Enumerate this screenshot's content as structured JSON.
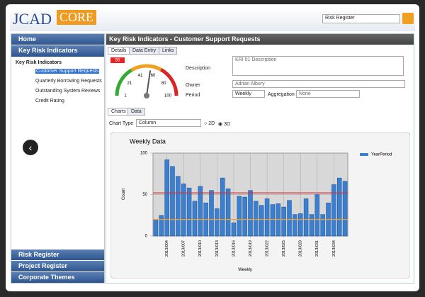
{
  "header": {
    "logo_left": "JCAD",
    "logo_right": "CORE",
    "register_select": "Risk Register"
  },
  "sidebar": {
    "top_sections": [
      "Home",
      "Key Risk Indicators"
    ],
    "tree_root": "Key Risk Indicators",
    "tree_items": [
      "Customer Support Requests",
      "Quarterly Borrowing Requests",
      "Outstanding System Reviews",
      "Credit Rating"
    ],
    "bottom_sections": [
      "Risk Register",
      "Project Register",
      "Corporate Themes"
    ]
  },
  "panel": {
    "title": "Key Risk Indicators - Customer Support Requests",
    "tabs": [
      "Details",
      "Data Entry",
      "Links"
    ],
    "gauge": {
      "value": 55,
      "ticks": [
        1,
        21,
        41,
        60,
        80,
        100
      ]
    },
    "fields": {
      "description_label": "Description",
      "description": "KRI 01 Description",
      "owner_label": "Owner",
      "owner": "Adrian Albury",
      "period_label": "Period",
      "period": "Weekly",
      "aggregation_label": "Aggregation",
      "aggregation": "None"
    },
    "chart_tabs": [
      "Charts",
      "Data"
    ],
    "chart_type_label": "Chart Type",
    "chart_type": "Column",
    "modes": [
      "2D",
      "3D"
    ]
  },
  "chart_data": {
    "type": "bar",
    "title": "Weekly Data",
    "x_label": "Weekly",
    "y_label": "Count",
    "categories": [
      null,
      null,
      "2013/004",
      null,
      null,
      "2013/007",
      null,
      null,
      "2013/010",
      null,
      null,
      "2013/013",
      null,
      null,
      "2013/016",
      null,
      null,
      "2013/019",
      null,
      null,
      "2013/022",
      null,
      null,
      "2013/025",
      null,
      null,
      "2013/028",
      null,
      null,
      "2013/031",
      null,
      null,
      "2013/034",
      null,
      null
    ],
    "series": [
      {
        "name": "YearPeriod",
        "color": "#3a7fd0",
        "values": [
          20,
          25,
          92,
          84,
          72,
          63,
          58,
          42,
          60,
          40,
          55,
          33,
          70,
          57,
          16,
          48,
          47,
          55,
          42,
          37,
          45,
          38,
          39,
          35,
          43,
          26,
          27,
          45,
          26,
          50,
          26,
          40,
          62,
          70,
          66
        ]
      }
    ],
    "ylim": [
      0,
      100
    ],
    "yticks": [
      0,
      50,
      100
    ],
    "reference_lines": [
      {
        "value": 52,
        "color": "#e03030"
      },
      {
        "value": 20,
        "color": "#f0a030"
      }
    ],
    "legend": "right"
  }
}
